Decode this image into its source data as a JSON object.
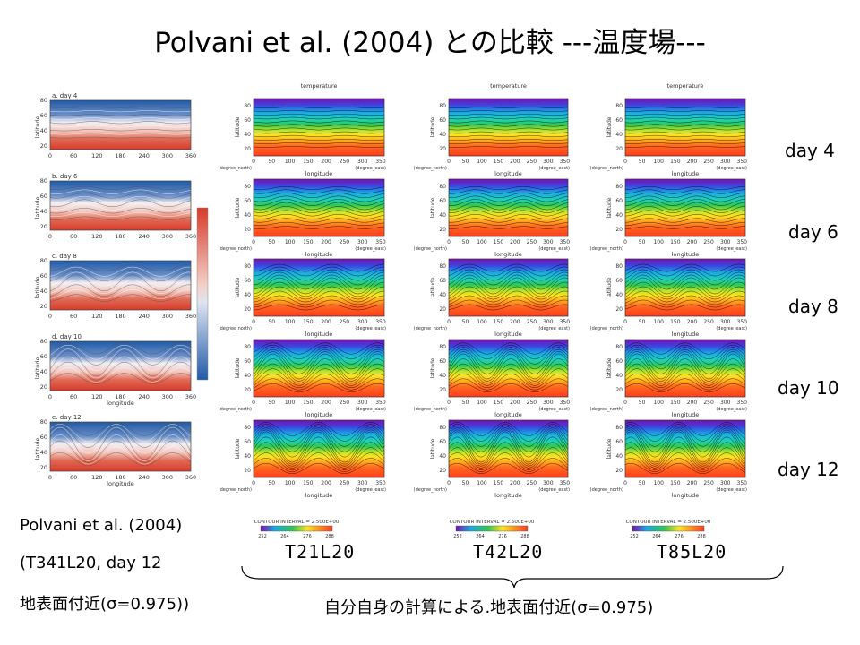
{
  "slide": {
    "title": "Polvani et al. (2004) との比較 ---温度場---",
    "left_caption": {
      "line1": "Polvani et al. (2004)",
      "line2": "(T341L20, day 12",
      "line3": "地表面付近(σ=0.975))"
    },
    "bottom_caption": "自分自身の計算による.地表面付近(σ=0.975)",
    "day_labels": [
      "day 4",
      "day 6",
      "day 8",
      "day 10",
      "day 12"
    ],
    "resolution_labels": [
      "T21L20",
      "T42L20",
      "T85L20"
    ]
  },
  "reference_panels": {
    "panel_titles": [
      "a. day 4",
      "b. day 6",
      "c. day 8",
      "d. day 10",
      "e. day 12"
    ],
    "x_ticks": [
      "0",
      "60",
      "120",
      "180",
      "240",
      "300",
      "360"
    ],
    "y_ticks": [
      "20",
      "40",
      "60",
      "80"
    ],
    "xlabel": "longitude",
    "ylabel": "latitude"
  },
  "model_panels": {
    "title": "temperature",
    "xlabel": "longitude",
    "ylabel": "latitude",
    "x_ticks": [
      "0",
      "50",
      "100",
      "150",
      "200",
      "250",
      "300",
      "350"
    ],
    "y_ticks": [
      "20",
      "40",
      "60",
      "80"
    ],
    "x_unit": "(degree_east)",
    "y_unit": "(degree_north)",
    "contour_interval": "CONTOUR INTERVAL = 2.500E+00",
    "colorbar_ticks": [
      "252",
      "264",
      "276",
      "288"
    ]
  },
  "colors": {
    "cold": "#7a10b0",
    "warm": "#ff3c1e",
    "reference_cold": "#1f5aa8",
    "reference_warm": "#d83a2a"
  }
}
